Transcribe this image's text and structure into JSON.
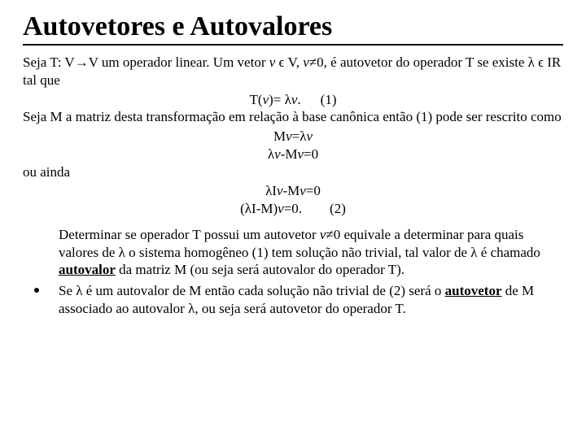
{
  "title": "Autovetores e Autovalores",
  "p1_a": "Seja T: V→V um operador linear. Um vetor ",
  "p1_v": "v",
  "p1_b": " ϵ V, ",
  "p1_v2": "v",
  "p1_c": "≠0, é autovetor do operador T se existe λ ϵ IR tal que",
  "eq1_text": "T(v)= λv.",
  "eq1_label": "(1)",
  "p2": "Seja M a matriz desta transformação em relação à base canônica então  (1) pode ser rescrito como",
  "eq2a": "Mv=λv",
  "eq2b": "λv-Mv=0",
  "p3": "ou ainda",
  "eq3a": "λIv-Mv=0",
  "eq3b": "(λI-M)v=0.",
  "eq3_label": "(2)",
  "li1_a": "Determinar se operador T possui um autovetor ",
  "li1_v": "v",
  "li1_b": "≠0 equivale a determinar para quais valores de λ  o sistema homogêneo (1) tem solução não trivial, tal valor de λ é chamado ",
  "li1_strong": "autovalor",
  "li1_c": " da matriz M (ou seja será  autovalor do operador T).",
  "li2_a": "Se λ é um autovalor de M então cada solução não trivial de (2) será o ",
  "li2_strong": "autovetor",
  "li2_b": " de M associado ao autovalor λ, ou seja será autovetor do operador T.",
  "colors": {
    "text": "#000000",
    "bg": "#ffffff"
  },
  "fontsize_title_pt": 26,
  "fontsize_body_pt": 13
}
